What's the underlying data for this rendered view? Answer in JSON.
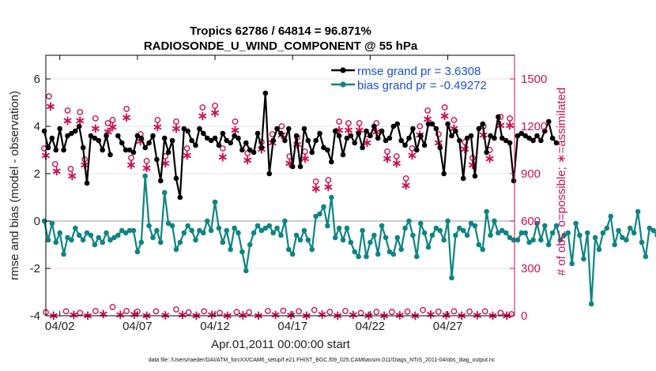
{
  "chart_data": {
    "type": "line",
    "title_line1": "Tropics 62786 / 64814 = 96.871%",
    "title_line2": "RADIOSONDE_U_WIND_COMPONENT @ 55 hPa",
    "xlabel": "Apr.01,2011 00:00:00 start",
    "ylabel_left": "rmse and bias (model - observation)",
    "ylabel_right": "# of obs: o=possible; ∗=assimilated",
    "footer": "data file: /Users/raeder/DAI/ATM_forcXX/CAM6_setup/f.e21.FHIST_BGC.f09_025.CAM6assim.011/Diags_NTrS_2011-04/obs_diag_output.nc",
    "xlim": [
      1.1,
      31.3
    ],
    "ylim_left": [
      -4,
      7
    ],
    "ylim_right": [
      0,
      1650
    ],
    "x_ticks": [
      {
        "x": 2,
        "label": "04/02"
      },
      {
        "x": 7,
        "label": "04/07"
      },
      {
        "x": 12,
        "label": "04/12"
      },
      {
        "x": 17,
        "label": "04/17"
      },
      {
        "x": 22,
        "label": "04/22"
      },
      {
        "x": 27,
        "label": "04/27"
      }
    ],
    "y_ticks_left": [
      -4,
      -2,
      0,
      2,
      4,
      6
    ],
    "y_ticks_right": [
      0,
      300,
      600,
      900,
      1200,
      1500
    ],
    "colors": {
      "rmse": "#000000",
      "bias": "#0e8484",
      "obs": "#cc1155",
      "legend_text": "#1a4fd6",
      "zero_line": "#bbbbbb",
      "grid": "#e6e6e6"
    },
    "legend": [
      {
        "key": "rmse",
        "label": "rmse grand pr = 3.6308"
      },
      {
        "key": "bias",
        "label": "bias grand pr = -0.49272"
      }
    ],
    "x_start": 1.0,
    "x_step": 0.25,
    "series": [
      {
        "name": "rmse",
        "values": [
          3.8,
          3.1,
          3.5,
          3.0,
          3.9,
          3.0,
          3.6,
          3.7,
          3.8,
          4.0,
          3.1,
          1.6,
          3.6,
          3.5,
          3.4,
          3.0,
          3.6,
          2.8,
          3.1,
          3.6,
          3.3,
          3.0,
          3.0,
          2.9,
          3.6,
          3.5,
          3.1,
          3.3,
          3.6,
          2.6,
          1.7,
          3.5,
          2.9,
          3.4,
          1.8,
          1.0,
          3.9,
          3.8,
          3.4,
          3.2,
          3.9,
          3.7,
          3.5,
          3.4,
          3.5,
          3.2,
          3.7,
          3.4,
          3.3,
          3.6,
          3.5,
          3.0,
          3.3,
          3.0,
          2.9,
          3.7,
          3.1,
          5.4,
          2.0,
          3.4,
          3.9,
          3.7,
          3.4,
          3.9,
          2.3,
          3.6,
          2.3,
          3.9,
          3.4,
          2.9,
          3.4,
          3.7,
          3.1,
          3.0,
          2.5,
          3.8,
          3.6,
          2.8,
          3.5,
          3.6,
          3.3,
          3.7,
          3.1,
          3.8,
          3.6,
          4.0,
          3.5,
          3.8,
          3.4,
          3.5,
          4.0,
          4.1,
          3.4,
          3.2,
          3.5,
          3.9,
          3.0,
          3.6,
          3.2,
          4.1,
          4.1,
          3.9,
          3.1,
          2.0,
          4.1,
          3.6,
          3.8,
          3.4,
          1.8,
          3.5,
          3.6,
          1.9,
          3.9,
          4.1,
          2.9,
          3.6,
          3.5,
          4.4,
          3.5,
          3.4,
          3.3,
          1.7,
          3.6,
          3.7,
          3.6,
          3.5,
          3.4,
          3.6,
          3.4,
          3.8,
          4.2,
          3.5,
          3.3
        ],
        "nan_indices": [
          18
        ]
      },
      {
        "name": "bias",
        "values": [
          0.0,
          -0.8,
          -0.1,
          -0.9,
          -0.5,
          -1.4,
          -0.7,
          -0.8,
          -0.3,
          -0.6,
          -0.8,
          -0.5,
          -0.6,
          -1.0,
          -0.7,
          -0.9,
          -0.5,
          -0.8,
          -0.7,
          -0.6,
          -0.4,
          -0.5,
          -0.4,
          -0.4,
          -1.3,
          -0.9,
          1.9,
          -0.2,
          -0.7,
          -0.4,
          -0.9,
          1.2,
          -0.1,
          -0.2,
          -1.2,
          -0.9,
          -0.5,
          -0.2,
          -0.4,
          -0.8,
          -0.4,
          -0.5,
          0.0,
          -0.4,
          0.8,
          -0.3,
          -0.9,
          -0.4,
          -1.2,
          -0.3,
          -0.5,
          -1.3,
          -2.1,
          -1.0,
          -0.5,
          -0.2,
          -0.4,
          -0.3,
          -0.2,
          -0.5,
          -0.3,
          -0.6,
          0.0,
          -1.2,
          -1.4,
          -0.6,
          -0.8,
          -0.4,
          -0.8,
          -1.2,
          0.2,
          0.3,
          0.6,
          -0.2,
          1.0,
          -0.7,
          -0.3,
          -0.8,
          -0.3,
          -0.9,
          -1.3,
          -1.5,
          -0.4,
          -1.5,
          -0.9,
          -0.6,
          -1.4,
          -0.2,
          -0.7,
          -1.3,
          -1.4,
          -0.7,
          -1.2,
          -0.3,
          0.0,
          -0.6,
          -1.5,
          -0.1,
          -0.5,
          -1.1,
          -0.6,
          -0.3,
          -0.4,
          -0.8,
          0.0,
          -2.4,
          -0.6,
          -0.3,
          -0.4,
          -0.6,
          -0.1,
          -0.2,
          -1.0,
          -1.2,
          0.4,
          -0.6,
          0.0,
          -0.5,
          -0.4,
          -0.5,
          -0.7,
          -0.8,
          -0.8,
          -0.5,
          -0.5,
          -0.9,
          -0.8,
          -0.1,
          -0.8,
          -0.2,
          -1.0,
          -0.5,
          -0.2,
          -0.8,
          -0.6,
          -0.5,
          -1.8,
          -0.1,
          -0.6,
          -1.6,
          -0.5,
          -3.5,
          -0.7,
          -1.2,
          -0.5,
          -0.3,
          0.2,
          -1.0,
          -0.4,
          -0.7,
          -0.8,
          -0.3,
          -0.5,
          0.4,
          -0.9,
          -1.5,
          -0.3,
          -0.4,
          -0.6
        ],
        "nan_indices": []
      }
    ],
    "obs_possible": [
      {
        "x": 1.0,
        "v": 1060
      },
      {
        "x": 1.3,
        "v": 1390
      },
      {
        "x": 1.7,
        "v": 960
      },
      {
        "x": 2.5,
        "v": 1300
      },
      {
        "x": 2.7,
        "v": 930
      },
      {
        "x": 3.3,
        "v": 1290
      },
      {
        "x": 3.6,
        "v": 990
      },
      {
        "x": 4.3,
        "v": 1250
      },
      {
        "x": 5.1,
        "v": 1220
      },
      {
        "x": 5.4,
        "v": 1240
      },
      {
        "x": 6.3,
        "v": 1310
      },
      {
        "x": 6.6,
        "v": 1000
      },
      {
        "x": 7.2,
        "v": 1150
      },
      {
        "x": 7.6,
        "v": 980
      },
      {
        "x": 8.3,
        "v": 1240
      },
      {
        "x": 8.8,
        "v": 1010
      },
      {
        "x": 9.5,
        "v": 1230
      },
      {
        "x": 10.2,
        "v": 1060
      },
      {
        "x": 11.2,
        "v": 1320
      },
      {
        "x": 12.0,
        "v": 1330
      },
      {
        "x": 12.5,
        "v": 1060
      },
      {
        "x": 13.3,
        "v": 1230
      },
      {
        "x": 14.1,
        "v": 1030
      },
      {
        "x": 15.0,
        "v": 1100
      },
      {
        "x": 15.7,
        "v": 1150
      },
      {
        "x": 16.3,
        "v": 1200
      },
      {
        "x": 16.8,
        "v": 1010
      },
      {
        "x": 17.3,
        "v": 1130
      },
      {
        "x": 17.8,
        "v": 1040
      },
      {
        "x": 18.5,
        "v": 850
      },
      {
        "x": 19.3,
        "v": 860
      },
      {
        "x": 20.0,
        "v": 1230
      },
      {
        "x": 20.6,
        "v": 1220
      },
      {
        "x": 21.3,
        "v": 1220
      },
      {
        "x": 21.8,
        "v": 1150
      },
      {
        "x": 22.4,
        "v": 1220
      },
      {
        "x": 23.1,
        "v": 1040
      },
      {
        "x": 23.7,
        "v": 1010
      },
      {
        "x": 24.3,
        "v": 870
      },
      {
        "x": 24.7,
        "v": 1060
      },
      {
        "x": 25.2,
        "v": 1200
      },
      {
        "x": 25.7,
        "v": 1300
      },
      {
        "x": 26.4,
        "v": 1150
      },
      {
        "x": 26.8,
        "v": 1320
      },
      {
        "x": 27.4,
        "v": 1240
      },
      {
        "x": 28.1,
        "v": 1100
      },
      {
        "x": 28.6,
        "v": 1000
      },
      {
        "x": 29.3,
        "v": 1200
      },
      {
        "x": 29.7,
        "v": 1050
      },
      {
        "x": 30.4,
        "v": 1260
      },
      {
        "x": 31.0,
        "v": 1250
      }
    ],
    "obs_assimilated": [
      {
        "x": 1.1,
        "v": 1020
      },
      {
        "x": 1.4,
        "v": 1330
      },
      {
        "x": 1.8,
        "v": 920
      },
      {
        "x": 2.5,
        "v": 1240
      },
      {
        "x": 2.8,
        "v": 890
      },
      {
        "x": 3.3,
        "v": 1240
      },
      {
        "x": 3.6,
        "v": 960
      },
      {
        "x": 4.3,
        "v": 1190
      },
      {
        "x": 5.1,
        "v": 1170
      },
      {
        "x": 5.4,
        "v": 1200
      },
      {
        "x": 6.3,
        "v": 1260
      },
      {
        "x": 6.6,
        "v": 960
      },
      {
        "x": 7.2,
        "v": 1110
      },
      {
        "x": 7.6,
        "v": 940
      },
      {
        "x": 8.3,
        "v": 1200
      },
      {
        "x": 8.8,
        "v": 970
      },
      {
        "x": 9.5,
        "v": 1190
      },
      {
        "x": 10.2,
        "v": 1020
      },
      {
        "x": 11.2,
        "v": 1270
      },
      {
        "x": 12.0,
        "v": 1290
      },
      {
        "x": 12.5,
        "v": 1010
      },
      {
        "x": 13.3,
        "v": 1180
      },
      {
        "x": 14.1,
        "v": 990
      },
      {
        "x": 15.0,
        "v": 1060
      },
      {
        "x": 15.7,
        "v": 1100
      },
      {
        "x": 16.3,
        "v": 1150
      },
      {
        "x": 16.8,
        "v": 970
      },
      {
        "x": 17.3,
        "v": 1090
      },
      {
        "x": 17.8,
        "v": 1000
      },
      {
        "x": 18.5,
        "v": 810
      },
      {
        "x": 19.3,
        "v": 820
      },
      {
        "x": 20.0,
        "v": 1180
      },
      {
        "x": 20.6,
        "v": 1180
      },
      {
        "x": 21.3,
        "v": 1180
      },
      {
        "x": 21.8,
        "v": 1100
      },
      {
        "x": 22.4,
        "v": 1170
      },
      {
        "x": 23.1,
        "v": 1000
      },
      {
        "x": 23.7,
        "v": 970
      },
      {
        "x": 24.3,
        "v": 830
      },
      {
        "x": 24.7,
        "v": 1020
      },
      {
        "x": 25.2,
        "v": 1150
      },
      {
        "x": 25.7,
        "v": 1250
      },
      {
        "x": 26.4,
        "v": 1100
      },
      {
        "x": 26.8,
        "v": 1270
      },
      {
        "x": 27.4,
        "v": 1190
      },
      {
        "x": 28.1,
        "v": 1060
      },
      {
        "x": 28.6,
        "v": 960
      },
      {
        "x": 29.3,
        "v": 1150
      },
      {
        "x": 29.7,
        "v": 1000
      },
      {
        "x": 30.4,
        "v": 1210
      },
      {
        "x": 31.0,
        "v": 1210
      }
    ],
    "obs_bottom_possible": [
      {
        "x": 1.1,
        "v": 22
      },
      {
        "x": 2.4,
        "v": 28
      },
      {
        "x": 3.3,
        "v": 18
      },
      {
        "x": 4.3,
        "v": 30
      },
      {
        "x": 5.4,
        "v": 55
      },
      {
        "x": 6.3,
        "v": 30
      },
      {
        "x": 7.0,
        "v": 26
      },
      {
        "x": 8.2,
        "v": 28
      },
      {
        "x": 9.5,
        "v": 40
      },
      {
        "x": 10.3,
        "v": 22
      },
      {
        "x": 11.3,
        "v": 28
      },
      {
        "x": 12.3,
        "v": 18
      },
      {
        "x": 13.4,
        "v": 24
      },
      {
        "x": 14.2,
        "v": 22
      },
      {
        "x": 15.4,
        "v": 30
      },
      {
        "x": 16.4,
        "v": 32
      },
      {
        "x": 17.4,
        "v": 28
      },
      {
        "x": 18.4,
        "v": 36
      },
      {
        "x": 19.4,
        "v": 24
      },
      {
        "x": 20.4,
        "v": 30
      },
      {
        "x": 21.4,
        "v": 18
      },
      {
        "x": 22.4,
        "v": 24
      },
      {
        "x": 23.4,
        "v": 24
      },
      {
        "x": 24.4,
        "v": 26
      },
      {
        "x": 25.4,
        "v": 36
      },
      {
        "x": 26.4,
        "v": 26
      },
      {
        "x": 27.4,
        "v": 28
      },
      {
        "x": 28.4,
        "v": 26
      },
      {
        "x": 29.4,
        "v": 28
      },
      {
        "x": 30.4,
        "v": 18
      },
      {
        "x": 31.1,
        "v": 10
      }
    ],
    "obs_bottom_assimilated": [
      {
        "x": 1.6,
        "v": 6
      },
      {
        "x": 2.9,
        "v": 10
      },
      {
        "x": 3.8,
        "v": 4
      },
      {
        "x": 4.8,
        "v": 14
      },
      {
        "x": 5.9,
        "v": 10
      },
      {
        "x": 6.8,
        "v": 12
      },
      {
        "x": 7.6,
        "v": 6
      },
      {
        "x": 8.8,
        "v": 8
      },
      {
        "x": 9.9,
        "v": 10
      },
      {
        "x": 10.8,
        "v": 6
      },
      {
        "x": 11.8,
        "v": 10
      },
      {
        "x": 12.8,
        "v": 4
      },
      {
        "x": 13.8,
        "v": 8
      },
      {
        "x": 14.8,
        "v": 6
      },
      {
        "x": 15.9,
        "v": 10
      },
      {
        "x": 16.9,
        "v": 8
      },
      {
        "x": 17.9,
        "v": 6
      },
      {
        "x": 18.9,
        "v": 12
      },
      {
        "x": 19.9,
        "v": 6
      },
      {
        "x": 20.9,
        "v": 10
      },
      {
        "x": 21.9,
        "v": 4
      },
      {
        "x": 22.9,
        "v": 6
      },
      {
        "x": 23.9,
        "v": 8
      },
      {
        "x": 24.9,
        "v": 6
      },
      {
        "x": 25.9,
        "v": 12
      },
      {
        "x": 26.9,
        "v": 8
      },
      {
        "x": 27.9,
        "v": 6
      },
      {
        "x": 28.9,
        "v": 8
      },
      {
        "x": 29.9,
        "v": 6
      },
      {
        "x": 30.8,
        "v": 4
      }
    ]
  }
}
